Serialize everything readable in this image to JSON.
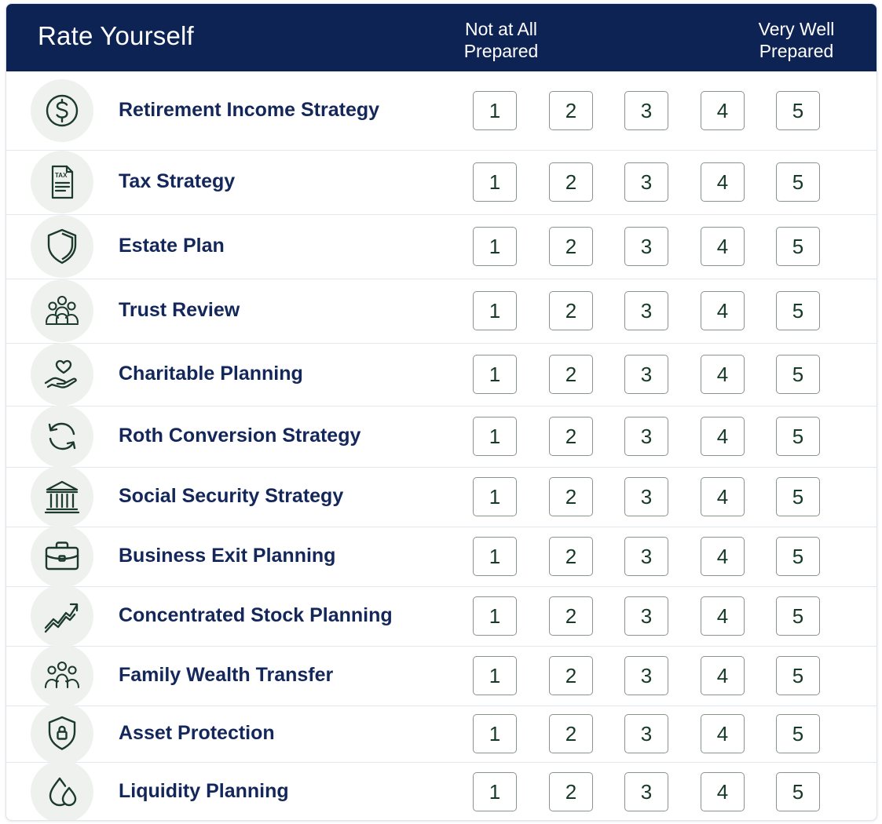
{
  "header": {
    "title": "Rate Yourself",
    "scale_low_line1": "Not at All",
    "scale_low_line2": "Prepared",
    "scale_high_line1": "Very Well",
    "scale_high_line2": "Prepared"
  },
  "colors": {
    "header_bg": "#0d2354",
    "label_text": "#14275a",
    "icon_stroke": "#1c3a2b",
    "icon_bg": "#eef1ee",
    "box_border": "#8a948e"
  },
  "rating_options": [
    "1",
    "2",
    "3",
    "4",
    "5"
  ],
  "items": [
    {
      "label": "Retirement Income Strategy",
      "icon": "dollar-circle-icon"
    },
    {
      "label": "Tax Strategy",
      "icon": "tax-document-icon",
      "icon_text": "TAX"
    },
    {
      "label": "Estate Plan",
      "icon": "shield-icon"
    },
    {
      "label": "Trust Review",
      "icon": "family-icon"
    },
    {
      "label": "Charitable Planning",
      "icon": "heart-hand-icon"
    },
    {
      "label": "Roth Conversion Strategy",
      "icon": "refresh-arrows-icon"
    },
    {
      "label": "Social Security Strategy",
      "icon": "bank-building-icon"
    },
    {
      "label": "Business Exit Planning",
      "icon": "briefcase-icon"
    },
    {
      "label": "Concentrated Stock Planning",
      "icon": "trending-up-icon"
    },
    {
      "label": "Family Wealth Transfer",
      "icon": "family-group-icon"
    },
    {
      "label": "Asset Protection",
      "icon": "shield-lock-icon"
    },
    {
      "label": "Liquidity Planning",
      "icon": "water-drops-icon"
    }
  ]
}
